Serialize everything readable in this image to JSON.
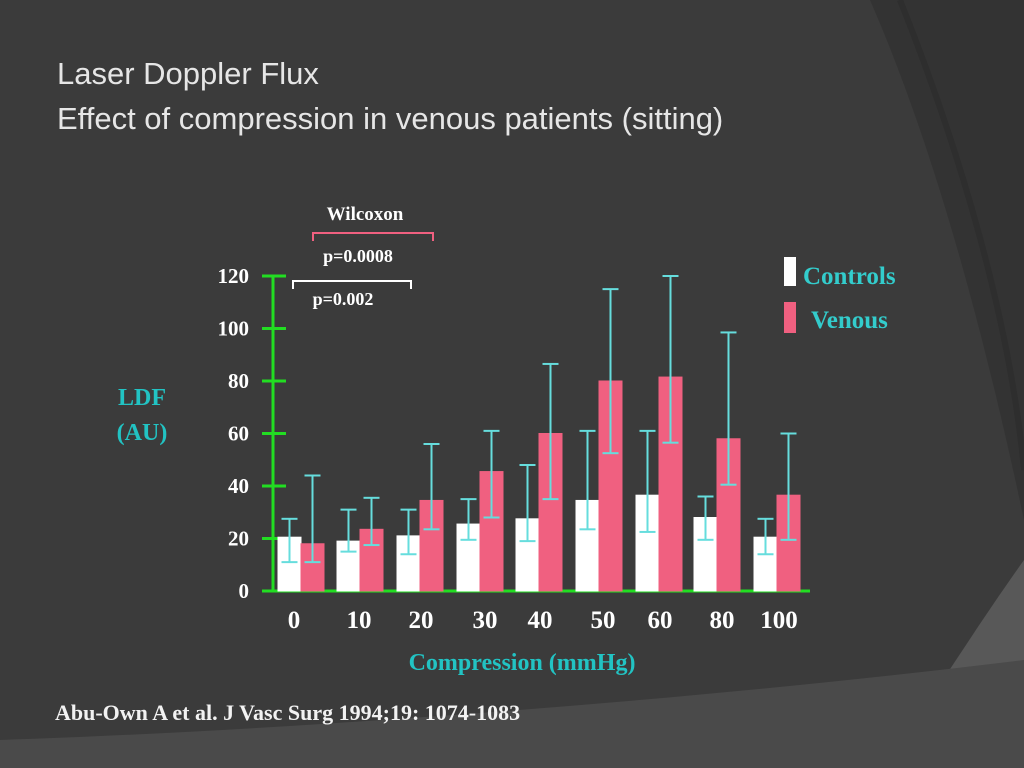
{
  "slide": {
    "title_line1": "Laser Doppler Flux",
    "title_line2": "Effect of compression in venous patients (sitting)",
    "citation": "Abu-Own A et al.   J Vasc Surg 1994;19: 1074-1083"
  },
  "chart_data": {
    "type": "bar",
    "xlabel": "Compression (mmHg)",
    "ylabel_line1": "LDF",
    "ylabel_line2": "(AU)",
    "ylim": [
      0,
      120
    ],
    "yticks": [
      0,
      20,
      40,
      60,
      80,
      100,
      120
    ],
    "grid": false,
    "legend_position": "top-right",
    "categories": [
      "0",
      "10",
      "20",
      "30",
      "40",
      "50",
      "60",
      "80",
      "100"
    ],
    "series": [
      {
        "name": "Controls",
        "color": "#ffffff",
        "values": [
          20.5,
          19,
          21,
          25.5,
          27.5,
          34.5,
          36.5,
          28,
          20.5
        ],
        "err_low": [
          11,
          15,
          14,
          19.5,
          19,
          23.5,
          22.5,
          19.5,
          14
        ],
        "err_high": [
          27.5,
          31,
          31,
          35,
          48,
          61,
          61,
          36,
          27.5
        ]
      },
      {
        "name": "Venous",
        "color": "#f06080",
        "values": [
          18,
          23.5,
          34.5,
          45.5,
          60,
          80,
          81.5,
          58,
          36.5
        ],
        "err_low": [
          11,
          17.5,
          23.5,
          28,
          35,
          52.5,
          56.5,
          40.5,
          19.5
        ],
        "err_high": [
          44,
          35.5,
          56,
          61,
          86.5,
          115,
          120,
          98.5,
          60
        ]
      }
    ],
    "annotations": {
      "test_label": "Wilcoxon",
      "p_venous": "p=0.0008",
      "p_controls": "p=0.002"
    },
    "colors": {
      "axis": "#22dd22",
      "error_bar": "#66dddd",
      "axis_label": "#22c3c3",
      "tick_label": "#ffffff",
      "legend_text": "#33cccc",
      "bracket_venous": "#f06080",
      "bracket_controls": "#ffffff"
    }
  }
}
